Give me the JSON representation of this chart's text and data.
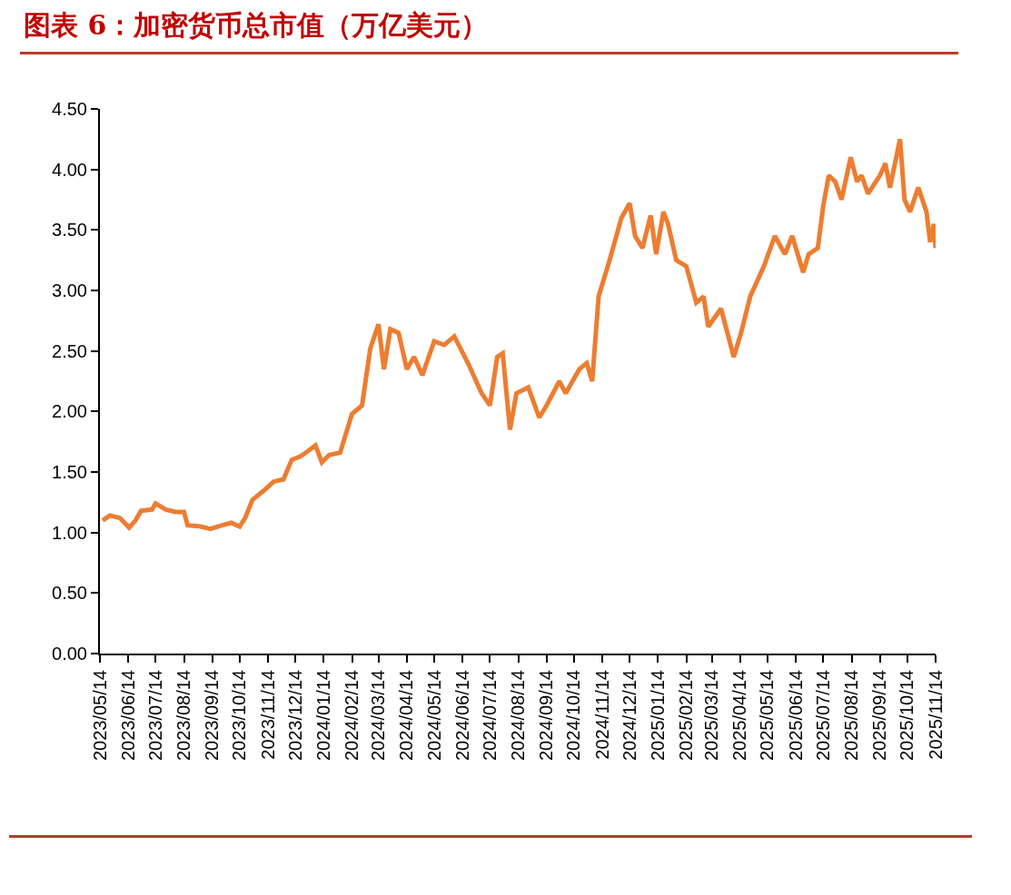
{
  "chart_data": {
    "type": "line",
    "title": "图表 6：加密货币总市值（万亿美元）",
    "series": [
      {
        "color": "#ed7d31",
        "x": [
          "2023-05-17",
          "2023-05-25",
          "2023-06-05",
          "2023-06-15",
          "2023-06-22",
          "2023-06-28",
          "2023-07-10",
          "2023-07-14",
          "2023-07-25",
          "2023-08-05",
          "2023-08-14",
          "2023-08-18",
          "2023-09-01",
          "2023-09-12",
          "2023-09-25",
          "2023-10-05",
          "2023-10-14",
          "2023-10-20",
          "2023-10-28",
          "2023-11-10",
          "2023-11-20",
          "2023-12-01",
          "2023-12-10",
          "2023-12-20",
          "2024-01-05",
          "2024-01-12",
          "2024-01-20",
          "2024-02-01",
          "2024-02-14",
          "2024-02-25",
          "2024-03-05",
          "2024-03-14",
          "2024-03-20",
          "2024-03-27",
          "2024-04-05",
          "2024-04-14",
          "2024-04-22",
          "2024-05-01",
          "2024-05-14",
          "2024-05-25",
          "2024-06-05",
          "2024-06-20",
          "2024-07-05",
          "2024-07-14",
          "2024-07-22",
          "2024-07-28",
          "2024-08-05",
          "2024-08-12",
          "2024-08-25",
          "2024-09-06",
          "2024-09-14",
          "2024-09-28",
          "2024-10-05",
          "2024-10-20",
          "2024-10-28",
          "2024-11-03",
          "2024-11-10",
          "2024-11-22",
          "2024-12-05",
          "2024-12-14",
          "2024-12-20",
          "2024-12-28",
          "2025-01-06",
          "2025-01-12",
          "2025-01-20",
          "2025-01-25",
          "2025-02-03",
          "2025-02-14",
          "2025-02-25",
          "2025-03-05",
          "2025-03-10",
          "2025-03-24",
          "2025-04-07",
          "2025-04-15",
          "2025-04-25",
          "2025-05-10",
          "2025-05-22",
          "2025-06-02",
          "2025-06-10",
          "2025-06-22",
          "2025-06-28",
          "2025-07-08",
          "2025-07-14",
          "2025-07-20",
          "2025-07-27",
          "2025-08-03",
          "2025-08-13",
          "2025-08-20",
          "2025-08-25",
          "2025-09-01",
          "2025-09-14",
          "2025-09-20",
          "2025-09-25",
          "2025-10-06",
          "2025-10-11",
          "2025-10-17",
          "2025-10-26",
          "2025-11-04",
          "2025-11-08",
          "2025-11-12",
          "2025-11-14"
        ],
        "values": [
          1.1,
          1.14,
          1.12,
          1.04,
          1.1,
          1.18,
          1.19,
          1.24,
          1.19,
          1.17,
          1.17,
          1.06,
          1.05,
          1.03,
          1.06,
          1.08,
          1.05,
          1.12,
          1.27,
          1.35,
          1.42,
          1.44,
          1.6,
          1.63,
          1.72,
          1.58,
          1.64,
          1.66,
          1.98,
          2.05,
          2.52,
          2.72,
          2.35,
          2.68,
          2.65,
          2.35,
          2.45,
          2.3,
          2.58,
          2.55,
          2.62,
          2.4,
          2.15,
          2.05,
          2.45,
          2.48,
          1.85,
          2.15,
          2.2,
          1.95,
          2.05,
          2.25,
          2.15,
          2.35,
          2.4,
          2.25,
          2.95,
          3.25,
          3.6,
          3.72,
          3.45,
          3.35,
          3.62,
          3.3,
          3.65,
          3.55,
          3.25,
          3.2,
          2.9,
          2.95,
          2.7,
          2.85,
          2.45,
          2.65,
          2.95,
          3.2,
          3.45,
          3.3,
          3.45,
          3.15,
          3.3,
          3.35,
          3.7,
          3.95,
          3.9,
          3.75,
          4.1,
          3.9,
          3.95,
          3.8,
          3.95,
          4.05,
          3.85,
          4.25,
          3.75,
          3.65,
          3.85,
          3.65,
          3.4,
          3.55,
          3.35
        ]
      }
    ],
    "xlim": [
      "2023-05-14",
      "2025-11-14"
    ],
    "xticks": [
      {
        "value": "2023-05-14",
        "label": "2023/05/14"
      },
      {
        "value": "2023-06-14",
        "label": "2023/06/14"
      },
      {
        "value": "2023-07-14",
        "label": "2023/07/14"
      },
      {
        "value": "2023-08-14",
        "label": "2023/08/14"
      },
      {
        "value": "2023-09-14",
        "label": "2023/09/14"
      },
      {
        "value": "2023-10-14",
        "label": "2023/10/14"
      },
      {
        "value": "2023-11-14",
        "label": "2023/11/14"
      },
      {
        "value": "2023-12-14",
        "label": "2023/12/14"
      },
      {
        "value": "2024-01-14",
        "label": "2024/01/14"
      },
      {
        "value": "2024-02-14",
        "label": "2024/02/14"
      },
      {
        "value": "2024-03-14",
        "label": "2024/03/14"
      },
      {
        "value": "2024-04-14",
        "label": "2024/04/14"
      },
      {
        "value": "2024-05-14",
        "label": "2024/05/14"
      },
      {
        "value": "2024-06-14",
        "label": "2024/06/14"
      },
      {
        "value": "2024-07-14",
        "label": "2024/07/14"
      },
      {
        "value": "2024-08-14",
        "label": "2024/08/14"
      },
      {
        "value": "2024-09-14",
        "label": "2024/09/14"
      },
      {
        "value": "2024-10-14",
        "label": "2024/10/14"
      },
      {
        "value": "2024-11-14",
        "label": "2024/11/14"
      },
      {
        "value": "2024-12-14",
        "label": "2024/12/14"
      },
      {
        "value": "2025-01-14",
        "label": "2025/01/14"
      },
      {
        "value": "2025-02-14",
        "label": "2025/02/14"
      },
      {
        "value": "2025-03-14",
        "label": "2025/03/14"
      },
      {
        "value": "2025-04-14",
        "label": "2025/04/14"
      },
      {
        "value": "2025-05-14",
        "label": "2025/05/14"
      },
      {
        "value": "2025-06-14",
        "label": "2025/06/14"
      },
      {
        "value": "2025-07-14",
        "label": "2025/07/14"
      },
      {
        "value": "2025-08-14",
        "label": "2025/08/14"
      },
      {
        "value": "2025-09-14",
        "label": "2025/09/14"
      },
      {
        "value": "2025-10-14",
        "label": "2025/10/14"
      },
      {
        "value": "2025-11-14",
        "label": "2025/11/14"
      }
    ],
    "ylim": [
      0,
      4.5
    ],
    "yticks": [
      {
        "value": 0,
        "label": "0.00"
      },
      {
        "value": 0.5,
        "label": "0.50"
      },
      {
        "value": 1,
        "label": "1.00"
      },
      {
        "value": 1.5,
        "label": "1.50"
      },
      {
        "value": 2,
        "label": "2.00"
      },
      {
        "value": 2.5,
        "label": "2.50"
      },
      {
        "value": 3,
        "label": "3.00"
      },
      {
        "value": 3.5,
        "label": "3.50"
      },
      {
        "value": 4,
        "label": "4.00"
      },
      {
        "value": 4.5,
        "label": "4.50"
      }
    ],
    "line_style": "solid"
  }
}
